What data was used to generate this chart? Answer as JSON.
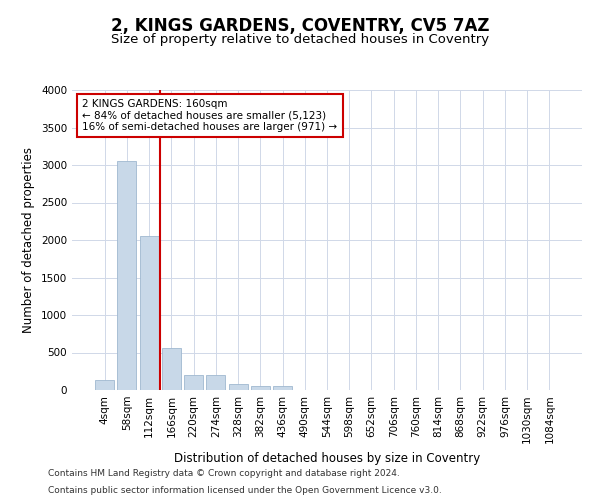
{
  "title": "2, KINGS GARDENS, COVENTRY, CV5 7AZ",
  "subtitle": "Size of property relative to detached houses in Coventry",
  "xlabel": "Distribution of detached houses by size in Coventry",
  "ylabel": "Number of detached properties",
  "categories": [
    "4sqm",
    "58sqm",
    "112sqm",
    "166sqm",
    "220sqm",
    "274sqm",
    "328sqm",
    "382sqm",
    "436sqm",
    "490sqm",
    "544sqm",
    "598sqm",
    "652sqm",
    "706sqm",
    "760sqm",
    "814sqm",
    "868sqm",
    "922sqm",
    "976sqm",
    "1030sqm",
    "1084sqm"
  ],
  "values": [
    130,
    3060,
    2050,
    560,
    195,
    195,
    75,
    60,
    50,
    0,
    0,
    0,
    0,
    0,
    0,
    0,
    0,
    0,
    0,
    0,
    0
  ],
  "bar_color": "#c8d8e8",
  "bar_edge_color": "#a0b8d0",
  "highlight_color": "#cc0000",
  "annotation_text": "2 KINGS GARDENS: 160sqm\n← 84% of detached houses are smaller (5,123)\n16% of semi-detached houses are larger (971) →",
  "annotation_box_color": "#ffffff",
  "annotation_box_edge": "#cc0000",
  "ylim": [
    0,
    4000
  ],
  "yticks": [
    0,
    500,
    1000,
    1500,
    2000,
    2500,
    3000,
    3500,
    4000
  ],
  "footer_line1": "Contains HM Land Registry data © Crown copyright and database right 2024.",
  "footer_line2": "Contains public sector information licensed under the Open Government Licence v3.0.",
  "bg_color": "#ffffff",
  "grid_color": "#d0d8e8",
  "title_fontsize": 12,
  "subtitle_fontsize": 9.5,
  "axis_label_fontsize": 8.5,
  "tick_fontsize": 7.5,
  "annotation_fontsize": 7.5,
  "footer_fontsize": 6.5
}
